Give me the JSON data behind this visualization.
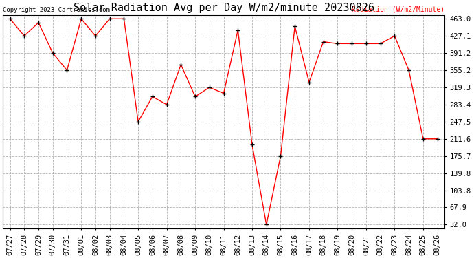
{
  "title": "Solar Radiation Avg per Day W/m2/minute 20230826",
  "copyright_text": "Copyright 2023 Cartronics.com",
  "legend_text": "Radiation (W/m2/Minute)",
  "dates": [
    "07/27",
    "07/28",
    "07/29",
    "07/30",
    "07/31",
    "08/01",
    "08/02",
    "08/03",
    "08/04",
    "08/05",
    "08/06",
    "08/07",
    "08/08",
    "08/09",
    "08/10",
    "08/11",
    "08/12",
    "08/13",
    "08/14",
    "08/15",
    "08/16",
    "08/17",
    "08/18",
    "08/19",
    "08/20",
    "08/21",
    "08/22",
    "08/23",
    "08/24",
    "08/25",
    "08/26"
  ],
  "values": [
    463.0,
    427.1,
    455.0,
    391.2,
    355.2,
    463.0,
    427.1,
    463.0,
    463.0,
    247.5,
    300.0,
    283.4,
    367.0,
    300.0,
    319.3,
    307.0,
    439.0,
    199.0,
    32.0,
    175.7,
    447.0,
    330.0,
    415.0,
    411.0,
    411.0,
    411.0,
    411.0,
    427.1,
    355.2,
    211.6,
    211.6
  ],
  "yticks": [
    32.0,
    67.9,
    103.8,
    139.8,
    175.7,
    211.6,
    247.5,
    283.4,
    319.3,
    355.2,
    391.2,
    427.1,
    463.0
  ],
  "line_color": "red",
  "marker_color": "black",
  "grid_color": "#aaaaaa",
  "bg_color": "white",
  "title_fontsize": 11,
  "tick_fontsize": 7.5,
  "ymin": 32.0,
  "ymax": 463.0
}
